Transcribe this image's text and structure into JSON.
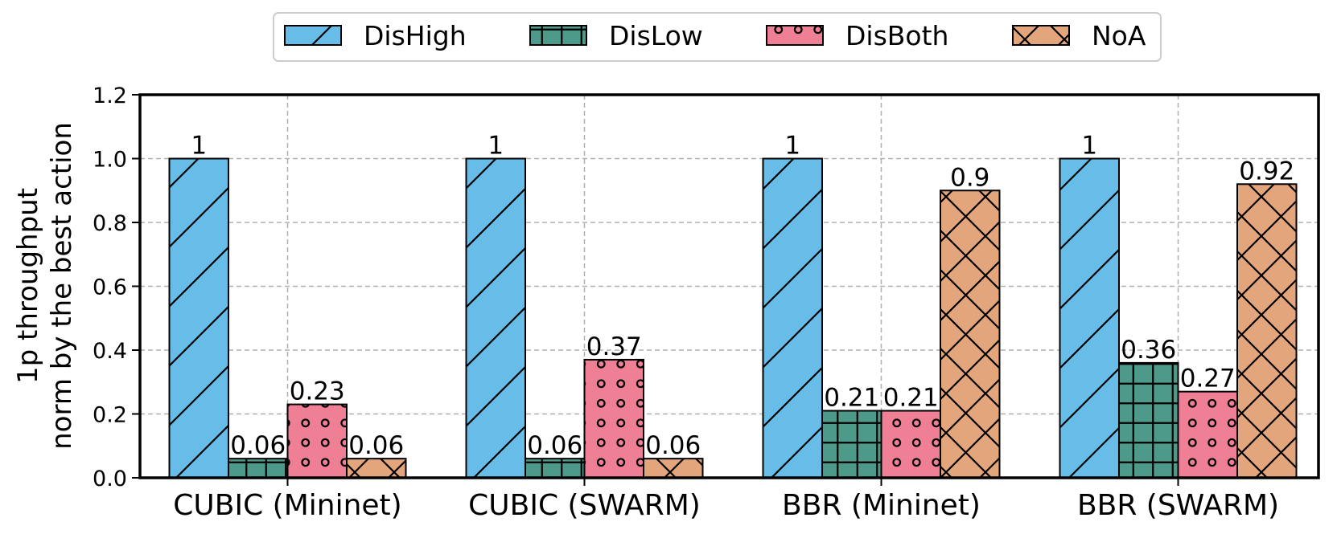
{
  "chart_data": {
    "type": "bar",
    "title": "",
    "ylabel_lines": [
      "1p throughput",
      "norm by the best action"
    ],
    "xlabel": "",
    "ylim": [
      0,
      1.2
    ],
    "yticks": [
      "0.0",
      "0.2",
      "0.4",
      "0.6",
      "0.8",
      "1.0",
      "1.2"
    ],
    "grid": true,
    "legend_position": "top-center",
    "categories": [
      "CUBIC (Mininet)",
      "CUBIC (SWARM)",
      "BBR (Mininet)",
      "BBR (SWARM)"
    ],
    "series": [
      {
        "name": "DisHigh",
        "color": "#67BCE8",
        "pattern": "diagonal",
        "values": [
          1,
          1,
          1,
          1
        ],
        "labels": [
          "1",
          "1",
          "1",
          "1"
        ]
      },
      {
        "name": "DisLow",
        "color": "#4E9A8A",
        "pattern": "grid",
        "values": [
          0.06,
          0.06,
          0.21,
          0.36
        ],
        "labels": [
          "0.06",
          "0.06",
          "0.21",
          "0.36"
        ]
      },
      {
        "name": "DisBoth",
        "color": "#EE7F94",
        "pattern": "circles",
        "values": [
          0.23,
          0.37,
          0.21,
          0.27
        ],
        "labels": [
          "0.23",
          "0.37",
          "0.21",
          "0.27"
        ]
      },
      {
        "name": "NoA",
        "color": "#E3A67C",
        "pattern": "crosshatch",
        "values": [
          0.06,
          0.06,
          0.9,
          0.92
        ],
        "labels": [
          "0.06",
          "0.06",
          "0.9",
          "0.92"
        ]
      }
    ]
  }
}
